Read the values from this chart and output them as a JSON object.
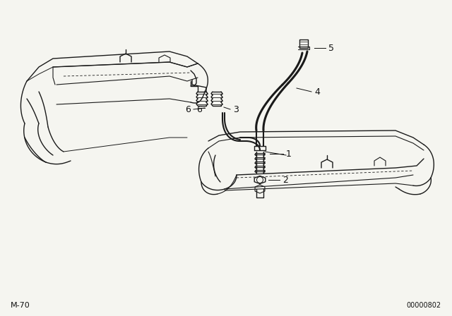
{
  "bg_color": "#f5f5f0",
  "line_color": "#1a1a1a",
  "text_color": "#111111",
  "bottom_left_text": "M-70",
  "bottom_right_text": "00000802",
  "figsize": [
    6.4,
    4.48
  ],
  "dpi": 100,
  "lw": 1.0
}
